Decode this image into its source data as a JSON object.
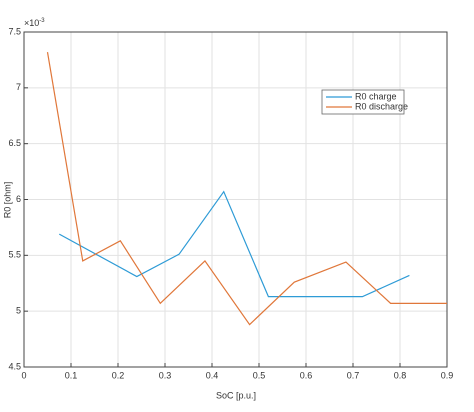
{
  "chart_data": {
    "type": "line",
    "x_label": "SoC [p.u.]",
    "y_label": "R0 [ohm]",
    "y_multiplier": "×10",
    "y_multiplier_exponent": "-3",
    "xlim": [
      0,
      0.9
    ],
    "xticks": [
      0,
      0.1,
      0.2,
      0.3,
      0.4,
      0.5,
      0.6,
      0.7,
      0.8,
      0.9
    ],
    "ylim": [
      4.5,
      7.5
    ],
    "yticks": [
      4.5,
      5,
      5.5,
      6,
      6.5,
      7,
      7.5
    ],
    "grid": true,
    "legend_position": "northeast",
    "series": [
      {
        "name": "R0 charge",
        "color": "#2e9bd6",
        "x": [
          0.075,
          0.24,
          0.33,
          0.425,
          0.52,
          0.72,
          0.82
        ],
        "values": [
          5.69,
          5.31,
          5.51,
          6.07,
          5.13,
          5.13,
          5.32
        ]
      },
      {
        "name": "R0 discharge",
        "color": "#e0773a",
        "x": [
          0.05,
          0.125,
          0.205,
          0.29,
          0.385,
          0.48,
          0.575,
          0.685,
          0.78,
          0.9
        ],
        "values": [
          7.32,
          5.45,
          5.63,
          5.07,
          5.45,
          4.88,
          5.26,
          5.44,
          5.07,
          5.07
        ]
      }
    ]
  }
}
